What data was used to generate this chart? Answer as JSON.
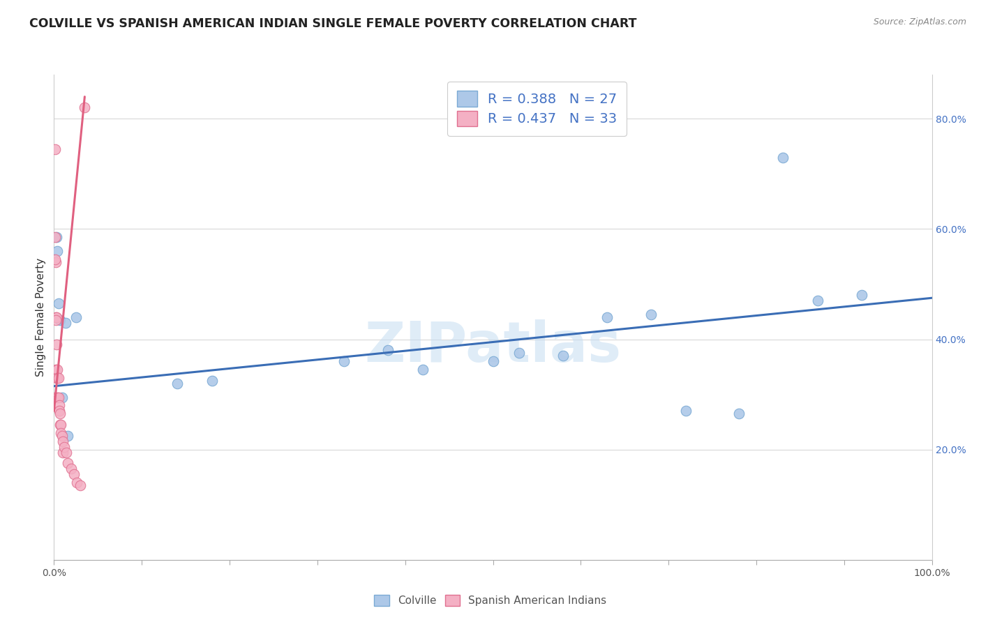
{
  "title": "COLVILLE VS SPANISH AMERICAN INDIAN SINGLE FEMALE POVERTY CORRELATION CHART",
  "source": "Source: ZipAtlas.com",
  "ylabel": "Single Female Poverty",
  "watermark": "ZIPatlas",
  "colville_color": "#adc8e8",
  "colville_edge": "#7baad4",
  "spanish_color": "#f4b0c4",
  "spanish_edge": "#e07090",
  "blue_line_color": "#3a6db5",
  "pink_line_color": "#e06080",
  "legend_r_color": "#4472c4",
  "colville_x": [
    0.003,
    0.004,
    0.005,
    0.007,
    0.009,
    0.013,
    0.016,
    0.025,
    0.14,
    0.18,
    0.33,
    0.38,
    0.42,
    0.5,
    0.53,
    0.58,
    0.63,
    0.68,
    0.72,
    0.78,
    0.83,
    0.87,
    0.92
  ],
  "colville_y": [
    0.585,
    0.56,
    0.465,
    0.435,
    0.295,
    0.43,
    0.225,
    0.44,
    0.32,
    0.325,
    0.36,
    0.38,
    0.345,
    0.36,
    0.375,
    0.37,
    0.44,
    0.445,
    0.27,
    0.265,
    0.73,
    0.47,
    0.48
  ],
  "spanish_x": [
    0.001,
    0.001,
    0.001,
    0.002,
    0.002,
    0.002,
    0.003,
    0.003,
    0.003,
    0.004,
    0.004,
    0.004,
    0.005,
    0.005,
    0.006,
    0.006,
    0.007,
    0.007,
    0.008,
    0.008,
    0.009,
    0.01,
    0.01,
    0.012,
    0.014,
    0.016,
    0.02,
    0.023,
    0.026,
    0.03,
    0.035,
    0.001,
    0.002
  ],
  "spanish_y": [
    0.745,
    0.585,
    0.295,
    0.54,
    0.44,
    0.345,
    0.44,
    0.39,
    0.33,
    0.345,
    0.33,
    0.295,
    0.33,
    0.295,
    0.28,
    0.27,
    0.265,
    0.245,
    0.245,
    0.23,
    0.225,
    0.215,
    0.195,
    0.205,
    0.195,
    0.175,
    0.165,
    0.155,
    0.14,
    0.135,
    0.82,
    0.545,
    0.435
  ],
  "blue_line_x": [
    0.0,
    1.0
  ],
  "blue_line_y": [
    0.315,
    0.475
  ],
  "pink_line_x": [
    0.0,
    0.035
  ],
  "pink_line_y": [
    0.27,
    0.84
  ],
  "xlim": [
    0.0,
    1.0
  ],
  "ylim": [
    0.0,
    0.88
  ],
  "marker_size": 110,
  "title_fontsize": 12.5,
  "axis_tick_fontsize": 10,
  "legend_fontsize": 14,
  "watermark_fontsize": 58
}
